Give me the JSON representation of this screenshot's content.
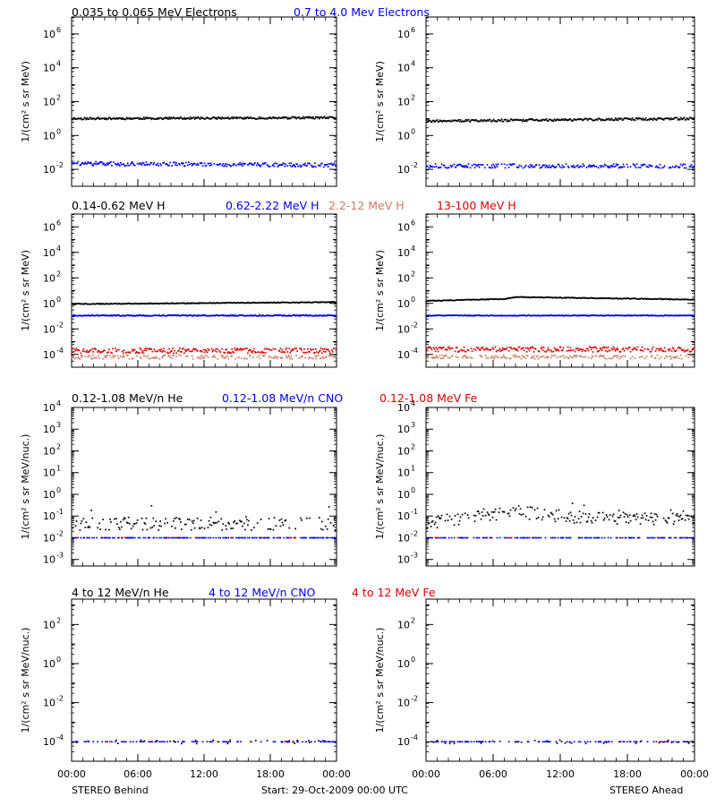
{
  "figure": {
    "x_axis": {
      "tick_labels": [
        "00:00",
        "06:00",
        "12:00",
        "18:00",
        "00:00"
      ],
      "left_caption": "STEREO Behind",
      "center_caption": "Start: 29-Oct-2009 00:00 UTC",
      "right_caption": "STEREO Ahead"
    },
    "rows": [
      {
        "titles": [
          {
            "text": "0.035 to 0.065 MeV Electrons",
            "color": "#000000"
          },
          {
            "text": "0.7 to 4.0 Mev Electrons",
            "color": "#0000ff"
          }
        ],
        "ylabel": "1/(cm² s sr MeV)",
        "y_ticks": [
          {
            "base": "10",
            "exp": "6"
          },
          {
            "base": "10",
            "exp": "4"
          },
          {
            "base": "10",
            "exp": "2"
          },
          {
            "base": "10",
            "exp": "0"
          },
          {
            "base": "10",
            "exp": "-2"
          }
        ]
      },
      {
        "titles": [
          {
            "text": "0.14-0.62 MeV H",
            "color": "#000000"
          },
          {
            "text": "0.62-2.22 MeV H",
            "color": "#0000ff"
          },
          {
            "text": "2.2-12 MeV H",
            "color": "#c87d64"
          },
          {
            "text": "13-100 MeV H",
            "color": "#e00000"
          }
        ],
        "ylabel": "1/(cm² s sr MeV)",
        "y_ticks": [
          {
            "base": "10",
            "exp": "6"
          },
          {
            "base": "10",
            "exp": "4"
          },
          {
            "base": "10",
            "exp": "2"
          },
          {
            "base": "10",
            "exp": "0"
          },
          {
            "base": "10",
            "exp": "-2"
          },
          {
            "base": "10",
            "exp": "-4"
          }
        ]
      },
      {
        "titles": [
          {
            "text": "0.12-1.08 MeV/n He",
            "color": "#000000"
          },
          {
            "text": "0.12-1.08 MeV/n CNO",
            "color": "#0000ff"
          },
          {
            "text": "0.12-1.08 MeV Fe",
            "color": "#e00000"
          }
        ],
        "ylabel": "1/(cm² s sr MeV/nuc.)",
        "y_ticks": [
          {
            "base": "10",
            "exp": "4"
          },
          {
            "base": "10",
            "exp": "3"
          },
          {
            "base": "10",
            "exp": "2"
          },
          {
            "base": "10",
            "exp": "1"
          },
          {
            "base": "10",
            "exp": "0"
          },
          {
            "base": "10",
            "exp": "-1"
          },
          {
            "base": "10",
            "exp": "-2"
          },
          {
            "base": "10",
            "exp": "-3"
          }
        ]
      },
      {
        "titles": [
          {
            "text": "4 to 12 MeV/n He",
            "color": "#000000"
          },
          {
            "text": "4 to 12 MeV/n CNO",
            "color": "#0000ff"
          },
          {
            "text": "4 to 12 MeV Fe",
            "color": "#e00000"
          }
        ],
        "ylabel": "1/(cm² s sr MeV/nuc.)",
        "y_ticks": [
          {
            "base": "10",
            "exp": "2"
          },
          {
            "base": "10",
            "exp": "0"
          },
          {
            "base": "10",
            "exp": "-2"
          },
          {
            "base": "10",
            "exp": "-4"
          }
        ]
      }
    ]
  },
  "chart_data": [
    {
      "type": "scatter",
      "spacecraft": "Behind",
      "row": 1,
      "xlim": [
        0,
        24
      ],
      "ylim": [
        -3,
        7
      ],
      "y_scale": "log",
      "series": [
        {
          "name": "0.035 to 0.065 MeV Electrons",
          "color": "#000000",
          "base_log10": 1.0,
          "jitter": 0.06,
          "density": 1.0,
          "trend": [
            [
              0,
              1.0
            ],
            [
              24,
              1.05
            ]
          ]
        },
        {
          "name": "0.7 to 4.0 Mev Electrons",
          "color": "#0000ff",
          "base_log10": -1.7,
          "jitter": 0.12,
          "density": 0.8,
          "trend": [
            [
              0,
              -1.65
            ],
            [
              24,
              -1.75
            ]
          ]
        }
      ]
    },
    {
      "type": "scatter",
      "spacecraft": "Ahead",
      "row": 1,
      "xlim": [
        0,
        24
      ],
      "ylim": [
        -3,
        7
      ],
      "y_scale": "log",
      "series": [
        {
          "name": "0.035 to 0.065 MeV Electrons",
          "color": "#000000",
          "base_log10": 0.9,
          "jitter": 0.07,
          "density": 1.0,
          "trend": [
            [
              0,
              0.85
            ],
            [
              24,
              1.0
            ]
          ]
        },
        {
          "name": "0.7 to 4.0 Mev Electrons",
          "color": "#0000ff",
          "base_log10": -1.8,
          "jitter": 0.12,
          "density": 0.8,
          "trend": [
            [
              0,
              -1.8
            ],
            [
              24,
              -1.8
            ]
          ]
        }
      ]
    },
    {
      "type": "scatter",
      "spacecraft": "Behind",
      "row": 2,
      "xlim": [
        0,
        24
      ],
      "ylim": [
        -5,
        7
      ],
      "y_scale": "log",
      "series": [
        {
          "name": "0.14-0.62 MeV H",
          "color": "#000000",
          "base_log10": 0.0,
          "jitter": 0.03,
          "density": 1.0,
          "trend": [
            [
              0,
              -0.05
            ],
            [
              24,
              0.1
            ]
          ]
        },
        {
          "name": "0.62-2.22 MeV H",
          "color": "#0000ff",
          "base_log10": -0.95,
          "jitter": 0.04,
          "density": 1.0,
          "trend": [
            [
              0,
              -0.95
            ],
            [
              24,
              -0.95
            ]
          ]
        },
        {
          "name": "2.2-12 MeV H",
          "color": "#c87d64",
          "base_log10": -4.2,
          "jitter": 0.15,
          "density": 0.6,
          "trend": [
            [
              0,
              -4.2
            ],
            [
              24,
              -4.2
            ]
          ]
        },
        {
          "name": "13-100 MeV H",
          "color": "#e00000",
          "base_log10": -3.7,
          "jitter": 0.2,
          "density": 0.8,
          "trend": [
            [
              0,
              -3.7
            ],
            [
              24,
              -3.7
            ]
          ]
        }
      ]
    },
    {
      "type": "scatter",
      "spacecraft": "Ahead",
      "row": 2,
      "xlim": [
        0,
        24
      ],
      "ylim": [
        -5,
        7
      ],
      "y_scale": "log",
      "series": [
        {
          "name": "0.14-0.62 MeV H",
          "color": "#000000",
          "base_log10": 0.3,
          "jitter": 0.03,
          "density": 1.0,
          "trend": [
            [
              0,
              0.2
            ],
            [
              7,
              0.35
            ],
            [
              8,
              0.5
            ],
            [
              12,
              0.45
            ],
            [
              24,
              0.3
            ]
          ]
        },
        {
          "name": "0.62-2.22 MeV H",
          "color": "#0000ff",
          "base_log10": -0.95,
          "jitter": 0.03,
          "density": 1.0,
          "trend": [
            [
              0,
              -0.95
            ],
            [
              24,
              -0.95
            ]
          ]
        },
        {
          "name": "2.2-12 MeV H",
          "color": "#c87d64",
          "base_log10": -4.2,
          "jitter": 0.15,
          "density": 0.6,
          "trend": [
            [
              0,
              -4.2
            ],
            [
              24,
              -4.2
            ]
          ]
        },
        {
          "name": "13-100 MeV H",
          "color": "#e00000",
          "base_log10": -3.6,
          "jitter": 0.2,
          "density": 0.8,
          "trend": [
            [
              0,
              -3.6
            ],
            [
              24,
              -3.6
            ]
          ]
        }
      ]
    },
    {
      "type": "scatter",
      "spacecraft": "Behind",
      "row": 3,
      "xlim": [
        0,
        24
      ],
      "ylim": [
        -3.3,
        4
      ],
      "y_scale": "log",
      "series": [
        {
          "name": "0.12-1.08 MeV/n He",
          "color": "#000000",
          "base_log10": -1.35,
          "jitter": 0.3,
          "density": 0.55,
          "trend": [
            [
              0,
              -1.35
            ],
            [
              24,
              -1.35
            ]
          ]
        },
        {
          "name": "0.12-1.08 MeV/n CNO",
          "color": "#0000ff",
          "base_log10": -2.0,
          "jitter": 0.0,
          "density": 0.5,
          "trend": [
            [
              0,
              -2.0
            ],
            [
              24,
              -2.0
            ]
          ]
        },
        {
          "name": "0.12-1.08 MeV Fe",
          "color": "#e00000",
          "base_log10": -2.0,
          "jitter": 0.0,
          "density": 0.05,
          "trend": [
            [
              0,
              -2.0
            ],
            [
              24,
              -2.0
            ]
          ]
        }
      ]
    },
    {
      "type": "scatter",
      "spacecraft": "Ahead",
      "row": 3,
      "xlim": [
        0,
        24
      ],
      "ylim": [
        -3.3,
        4
      ],
      "y_scale": "log",
      "series": [
        {
          "name": "0.12-1.08 MeV/n He",
          "color": "#000000",
          "base_log10": -1.2,
          "jitter": 0.3,
          "density": 0.6,
          "trend": [
            [
              0,
              -1.3
            ],
            [
              8,
              -0.8
            ],
            [
              11,
              -1.0
            ],
            [
              24,
              -1.2
            ]
          ]
        },
        {
          "name": "0.12-1.08 MeV/n CNO",
          "color": "#0000ff",
          "base_log10": -2.0,
          "jitter": 0.0,
          "density": 0.5,
          "trend": [
            [
              0,
              -2.0
            ],
            [
              24,
              -2.0
            ]
          ]
        },
        {
          "name": "0.12-1.08 MeV Fe",
          "color": "#e00000",
          "base_log10": -2.0,
          "jitter": 0.0,
          "density": 0.05,
          "trend": [
            [
              0,
              -2.0
            ],
            [
              24,
              -2.0
            ]
          ]
        }
      ]
    },
    {
      "type": "scatter",
      "spacecraft": "Behind",
      "row": 4,
      "xlim": [
        0,
        24
      ],
      "ylim": [
        -5,
        3.3
      ],
      "y_scale": "log",
      "series": [
        {
          "name": "4 to 12 MeV/n He",
          "color": "#000000",
          "base_log10": -4.0,
          "jitter": 0.1,
          "density": 0.12,
          "trend": [
            [
              0,
              -4.0
            ],
            [
              24,
              -4.0
            ]
          ]
        },
        {
          "name": "4 to 12 MeV/n CNO",
          "color": "#0000ff",
          "base_log10": -4.0,
          "jitter": 0.0,
          "density": 0.3,
          "trend": [
            [
              0,
              -4.0
            ],
            [
              24,
              -4.0
            ]
          ]
        },
        {
          "name": "4 to 12 MeV Fe",
          "color": "#e00000",
          "base_log10": -4.0,
          "jitter": 0.0,
          "density": 0.02,
          "trend": [
            [
              0,
              -4.0
            ],
            [
              24,
              -4.0
            ]
          ]
        }
      ]
    },
    {
      "type": "scatter",
      "spacecraft": "Ahead",
      "row": 4,
      "xlim": [
        0,
        24
      ],
      "ylim": [
        -5,
        3.3
      ],
      "y_scale": "log",
      "series": [
        {
          "name": "4 to 12 MeV/n He",
          "color": "#000000",
          "base_log10": -4.0,
          "jitter": 0.1,
          "density": 0.12,
          "trend": [
            [
              0,
              -4.0
            ],
            [
              24,
              -4.0
            ]
          ]
        },
        {
          "name": "4 to 12 MeV/n CNO",
          "color": "#0000ff",
          "base_log10": -4.0,
          "jitter": 0.0,
          "density": 0.3,
          "trend": [
            [
              0,
              -4.0
            ],
            [
              24,
              -4.0
            ]
          ]
        },
        {
          "name": "4 to 12 MeV Fe",
          "color": "#e00000",
          "base_log10": -4.0,
          "jitter": 0.0,
          "density": 0.02,
          "trend": [
            [
              0,
              -4.0
            ],
            [
              24,
              -4.0
            ]
          ]
        }
      ]
    }
  ]
}
